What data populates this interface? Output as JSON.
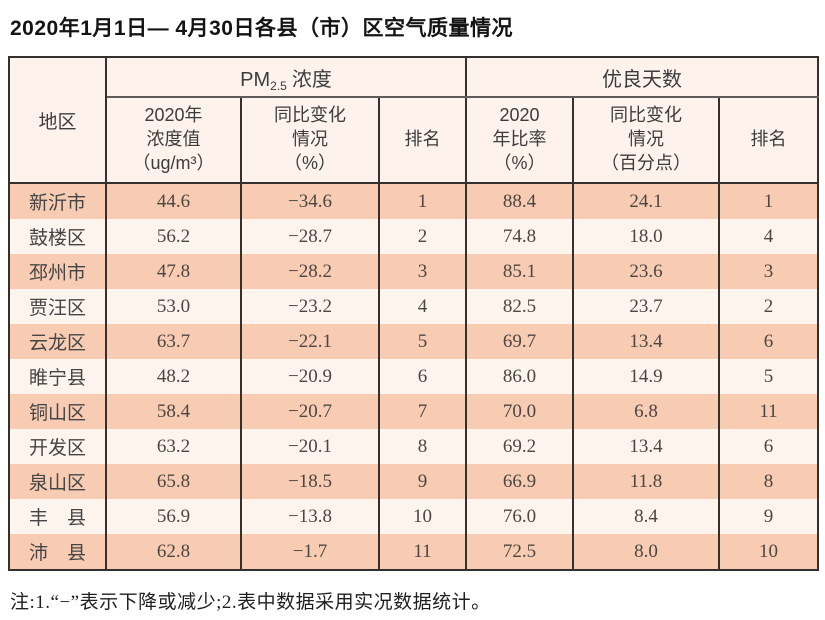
{
  "title": "2020年1月1日— 4月30日各县（市）区空气质量情况",
  "colors": {
    "row_salmon": "#f8cbb3",
    "row_light": "#fdf4ee",
    "header_bg": "#fdf3ec",
    "border_dark": "#33302e"
  },
  "table": {
    "region_header": "地区",
    "pm_group": {
      "prefix": "PM",
      "sub": "2.5",
      "suffix": "浓度"
    },
    "good_days_group": "优良天数",
    "sub_headers": {
      "concentration": "2020年\n浓度值\n（ug/m³）",
      "yoy_change_pct": "同比变化\n情况\n（%）",
      "rank_pm": "排名",
      "ratio_2020": "2020\n年比率\n（%）",
      "yoy_change_points": "同比变化\n情况\n（百分点）",
      "rank_days": "排名"
    },
    "rows": [
      [
        "新沂市",
        "44.6",
        "−34.6",
        "1",
        "88.4",
        "24.1",
        "1"
      ],
      [
        "鼓楼区",
        "56.2",
        "−28.7",
        "2",
        "74.8",
        "18.0",
        "4"
      ],
      [
        "邳州市",
        "47.8",
        "−28.2",
        "3",
        "85.1",
        "23.6",
        "3"
      ],
      [
        "贾汪区",
        "53.0",
        "−23.2",
        "4",
        "82.5",
        "23.7",
        "2"
      ],
      [
        "云龙区",
        "63.7",
        "−22.1",
        "5",
        "69.7",
        "13.4",
        "6"
      ],
      [
        "睢宁县",
        "48.2",
        "−20.9",
        "6",
        "86.0",
        "14.9",
        "5"
      ],
      [
        "铜山区",
        "58.4",
        "−20.7",
        "7",
        "70.0",
        "6.8",
        "11"
      ],
      [
        "开发区",
        "63.2",
        "−20.1",
        "8",
        "69.2",
        "13.4",
        "6"
      ],
      [
        "泉山区",
        "65.8",
        "−18.5",
        "9",
        "66.9",
        "11.8",
        "8"
      ],
      [
        "丰　县",
        "56.9",
        "−13.8",
        "10",
        "76.0",
        "8.4",
        "9"
      ],
      [
        "沛　县",
        "62.8",
        "−1.7",
        "11",
        "72.5",
        "8.0",
        "10"
      ]
    ]
  },
  "note": "注:1.“−”表示下降或减少;2.表中数据采用实况数据统计。"
}
